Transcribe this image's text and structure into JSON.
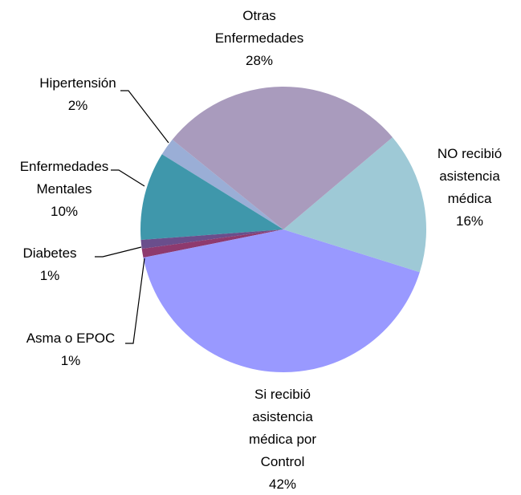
{
  "chart_data": {
    "type": "pie",
    "categories": [
      "Otras Enfermedades",
      "NO recibió asistencia médica",
      "Si recibió asistencia médica por Control",
      "Asma o EPOC",
      "Diabetes",
      "Enfermedades Mentales",
      "Hipertensión"
    ],
    "values": [
      28,
      16,
      42,
      1,
      1,
      10,
      2
    ],
    "value_labels": [
      "28%",
      "16%",
      "42%",
      "1%",
      "1%",
      "10%",
      "2%"
    ],
    "colors": [
      "#a99bbd",
      "#9ec9d6",
      "#9999ff",
      "#8e3a6e",
      "#6a4e8c",
      "#3f97ab",
      "#9aaed6"
    ],
    "startangle": 309,
    "direction": "clockwise"
  }
}
